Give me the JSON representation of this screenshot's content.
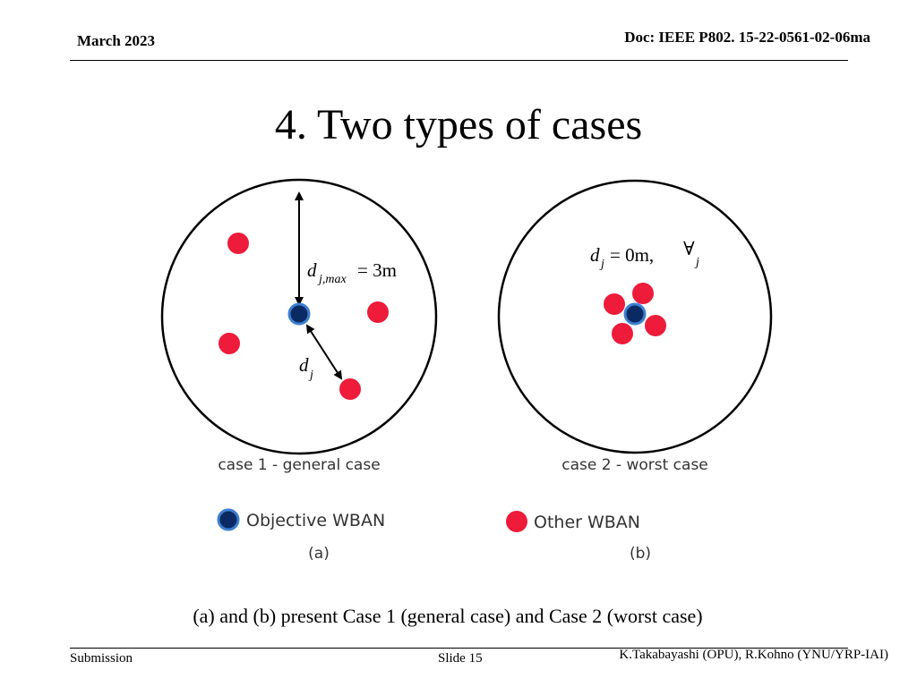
{
  "header": {
    "date": "March 2023",
    "doc_id": "Doc: IEEE P802. 15-22-0561-02-06ma"
  },
  "slide_title": "4. Two types of cases",
  "figure": {
    "panel_a": {
      "case_label": "case 1 - general case",
      "panel_letter": "(a)",
      "dmax_label": "= 3m",
      "dmax_symbol": "d",
      "dmax_subscript": "j,max",
      "dj_symbol": "d",
      "dj_subscript": "j"
    },
    "panel_b": {
      "case_label": "case 2 - worst case",
      "panel_letter": "(b)",
      "dj_symbol": "d",
      "dj_subscript": "j",
      "dj_value": "= 0m,",
      "forall_symbol": "∀",
      "forall_subscript": "j"
    },
    "legend": {
      "objective": "Objective WBAN",
      "other": "Other WBAN"
    },
    "colors": {
      "objective_fill": "#0b2a63",
      "objective_ring": "#3d7fd0",
      "other_fill": "#ee1b3a"
    }
  },
  "caption": "(a) and (b) present Case 1 (general case) and Case 2 (worst case)",
  "footer": {
    "submission": "Submission",
    "slide": "Slide 15",
    "authors": "K.Takabayashi (OPU), R.Kohno (YNU/YRP-IAI)"
  }
}
